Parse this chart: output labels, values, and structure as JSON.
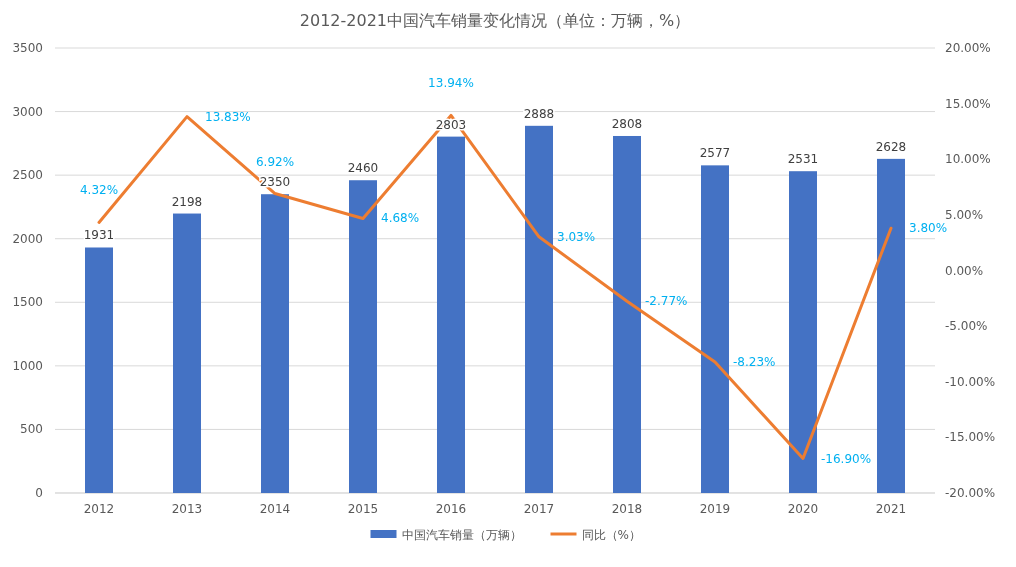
{
  "chart_data": {
    "type": "bar",
    "title": "2012-2021中国汽车销量变化情况（单位：万辆，%）",
    "categories": [
      "2012",
      "2013",
      "2014",
      "2015",
      "2016",
      "2017",
      "2018",
      "2019",
      "2020",
      "2021"
    ],
    "series": [
      {
        "name": "中国汽车销量（万辆）",
        "color": "#4472c4",
        "values": [
          1931,
          2198,
          2350,
          2460,
          2803,
          2888,
          2808,
          2577,
          2531,
          2628
        ],
        "value_labels": [
          "1931",
          "2198",
          "2350",
          "2460",
          "2803",
          "2888",
          "2808",
          "2577",
          "2531",
          "2628"
        ]
      },
      {
        "name": "同比（%）",
        "type": "line",
        "axis": "y2",
        "color": "#ed7d31",
        "values": [
          4.32,
          13.83,
          6.92,
          4.68,
          13.94,
          3.03,
          -2.77,
          -8.23,
          -16.9,
          3.8
        ],
        "value_labels": [
          "4.32%",
          "13.83%",
          "6.92%",
          "4.68%",
          "13.94%",
          "3.03%",
          "-2.77%",
          "-8.23%",
          "-16.90%",
          "3.80%"
        ]
      }
    ],
    "ylim": [
      0,
      3500
    ],
    "yticks": [
      0,
      500,
      1000,
      1500,
      2000,
      2500,
      3000,
      3500
    ],
    "y2lim": [
      -20,
      20
    ],
    "y2ticks": [
      {
        "value": -20,
        "label": "-20.00%"
      },
      {
        "value": -15,
        "label": "-15.00%"
      },
      {
        "value": -10,
        "label": "-10.00%"
      },
      {
        "value": -5,
        "label": "-5.00%"
      },
      {
        "value": 0,
        "label": "0.00%"
      },
      {
        "value": 5,
        "label": "5.00%"
      },
      {
        "value": 10,
        "label": "10.00%"
      },
      {
        "value": 15,
        "label": "15.00%"
      },
      {
        "value": 20,
        "label": "20.00%"
      }
    ],
    "grid": "y",
    "legend": "bottom"
  }
}
